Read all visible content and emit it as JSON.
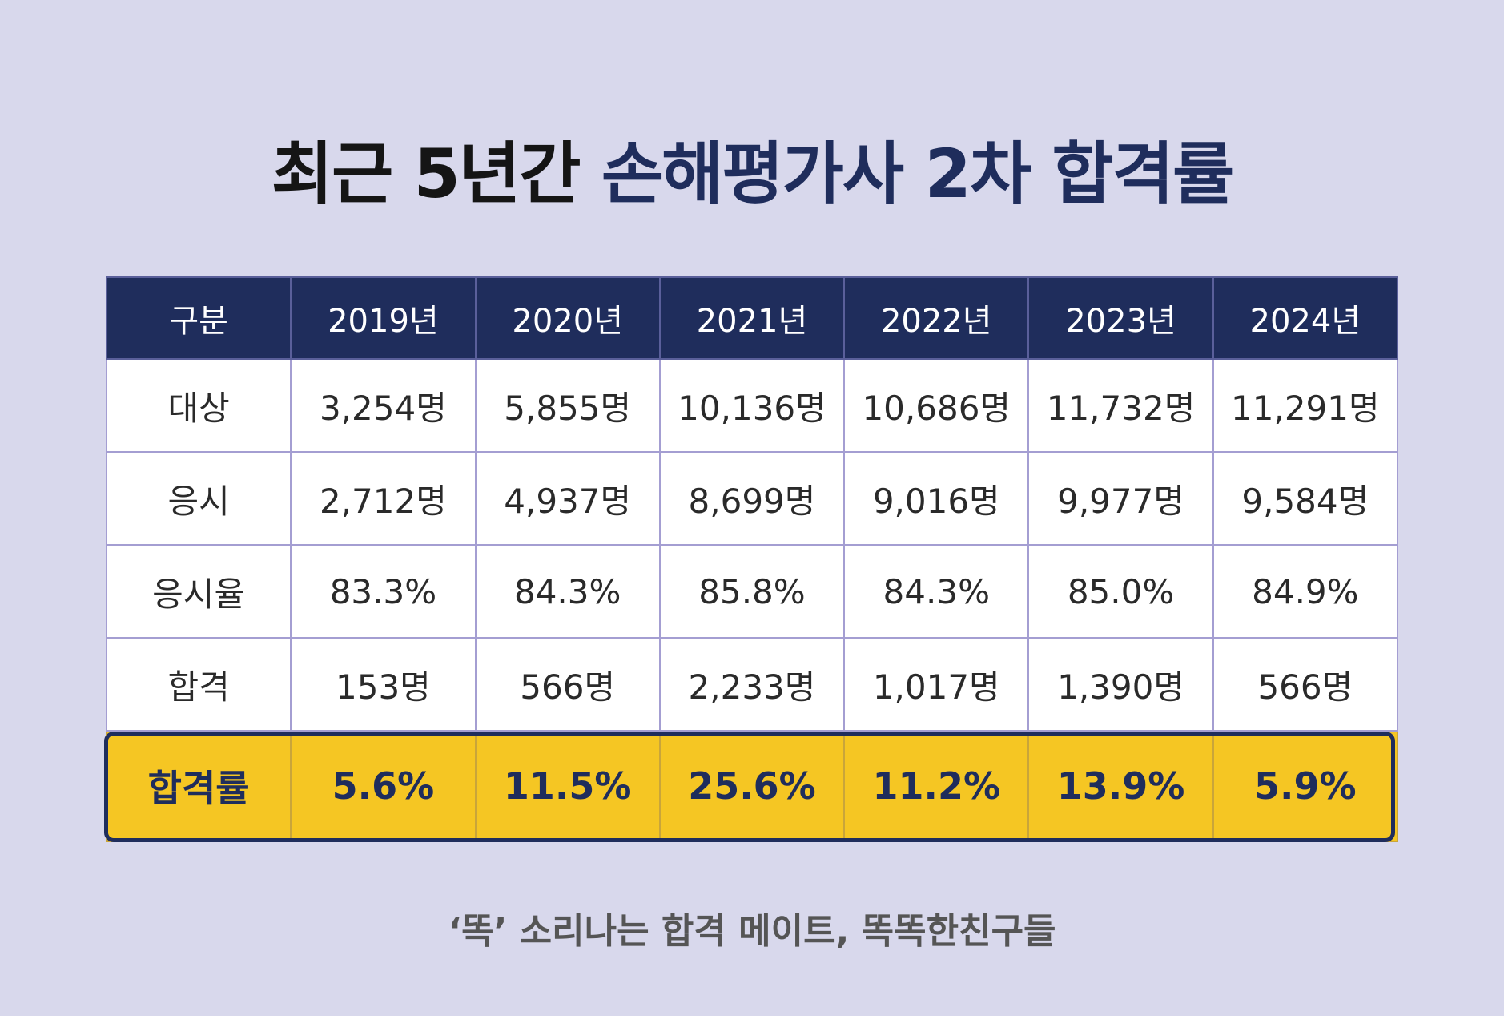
{
  "title": {
    "part1": "최근 5년간",
    "part2": "손해평가사 2차 합격률"
  },
  "table": {
    "headers": [
      "구분",
      "2019년",
      "2020년",
      "2021년",
      "2022년",
      "2023년",
      "2024년"
    ],
    "rows": [
      {
        "label": "대상",
        "values": [
          "3,254명",
          "5,855명",
          "10,136명",
          "10,686명",
          "11,732명",
          "11,291명"
        ]
      },
      {
        "label": "응시",
        "values": [
          "2,712명",
          "4,937명",
          "8,699명",
          "9,016명",
          "9,977명",
          "9,584명"
        ]
      },
      {
        "label": "응시율",
        "values": [
          "83.3%",
          "84.3%",
          "85.8%",
          "84.3%",
          "85.0%",
          "84.9%"
        ]
      },
      {
        "label": "합격",
        "values": [
          "153명",
          "566명",
          "2,233명",
          "1,017명",
          "1,390명",
          "566명"
        ]
      },
      {
        "label": "합격률",
        "values": [
          "5.6%",
          "11.5%",
          "25.6%",
          "11.2%",
          "13.9%",
          "5.9%"
        ]
      }
    ]
  },
  "footer": "‘똑’ 소리나는 합격 메이트, 똑똑한친구들",
  "colors": {
    "background": "#d8d8ec",
    "navy": "#1f2d5c",
    "highlight": "#f5c623"
  }
}
